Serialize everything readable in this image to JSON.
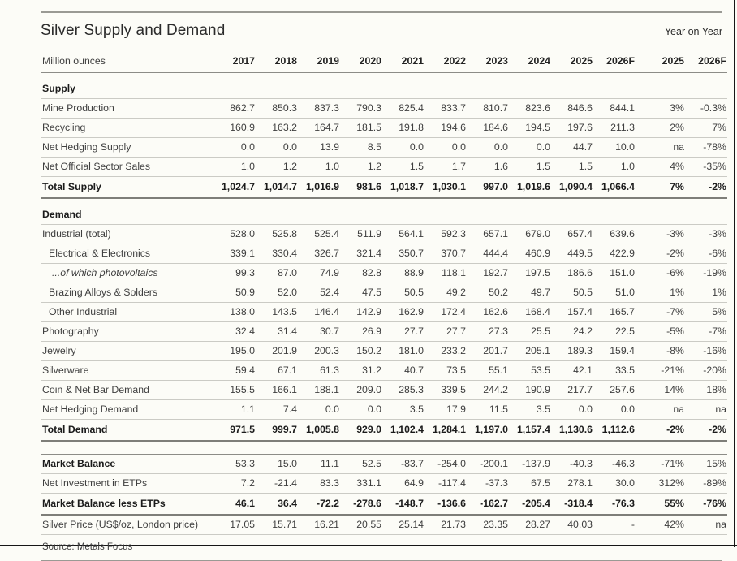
{
  "page": {
    "title": "Silver Supply and Demand",
    "yoy_label": "Year on Year",
    "source": "Source: Metals Focus"
  },
  "table": {
    "unit_label": "Million ounces",
    "year_columns": [
      "2017",
      "2018",
      "2019",
      "2020",
      "2021",
      "2022",
      "2023",
      "2024",
      "2025",
      "2026F"
    ],
    "yoy_columns": [
      "2025",
      "2026F"
    ],
    "rows": [
      {
        "style": "section",
        "label": "Supply"
      },
      {
        "style": "plain",
        "label": "Mine Production",
        "values": [
          "862.7",
          "850.3",
          "837.3",
          "790.3",
          "825.4",
          "833.7",
          "810.7",
          "823.6",
          "846.6",
          "844.1"
        ],
        "yoy": [
          "3%",
          "-0.3%"
        ]
      },
      {
        "style": "plain",
        "label": "Recycling",
        "values": [
          "160.9",
          "163.2",
          "164.7",
          "181.5",
          "191.8",
          "194.6",
          "184.6",
          "194.5",
          "197.6",
          "211.3"
        ],
        "yoy": [
          "2%",
          "7%"
        ]
      },
      {
        "style": "plain",
        "label": "Net Hedging Supply",
        "values": [
          "0.0",
          "0.0",
          "13.9",
          "8.5",
          "0.0",
          "0.0",
          "0.0",
          "0.0",
          "44.7",
          "10.0"
        ],
        "yoy": [
          "na",
          "-78%"
        ]
      },
      {
        "style": "plain",
        "label": "Net Official Sector Sales",
        "values": [
          "1.0",
          "1.2",
          "1.0",
          "1.2",
          "1.5",
          "1.7",
          "1.6",
          "1.5",
          "1.5",
          "1.0"
        ],
        "yoy": [
          "4%",
          "-35%"
        ]
      },
      {
        "style": "total",
        "label": "Total Supply",
        "values": [
          "1,024.7",
          "1,014.7",
          "1,016.9",
          "981.6",
          "1,018.7",
          "1,030.1",
          "997.0",
          "1,019.6",
          "1,090.4",
          "1,066.4"
        ],
        "yoy": [
          "7%",
          "-2%"
        ]
      },
      {
        "style": "section",
        "label": "Demand"
      },
      {
        "style": "plain",
        "label": "Industrial (total)",
        "values": [
          "528.0",
          "525.8",
          "525.4",
          "511.9",
          "564.1",
          "592.3",
          "657.1",
          "679.0",
          "657.4",
          "639.6"
        ],
        "yoy": [
          "-3%",
          "-3%"
        ]
      },
      {
        "style": "indent1",
        "label": "Electrical & Electronics",
        "values": [
          "339.1",
          "330.4",
          "326.7",
          "321.4",
          "350.7",
          "370.7",
          "444.4",
          "460.9",
          "449.5",
          "422.9"
        ],
        "yoy": [
          "-2%",
          "-6%"
        ]
      },
      {
        "style": "indent2italic",
        "label": "...of which photovoltaics",
        "values": [
          "99.3",
          "87.0",
          "74.9",
          "82.8",
          "88.9",
          "118.1",
          "192.7",
          "197.5",
          "186.6",
          "151.0"
        ],
        "yoy": [
          "-6%",
          "-19%"
        ]
      },
      {
        "style": "indent1",
        "label": "Brazing Alloys & Solders",
        "values": [
          "50.9",
          "52.0",
          "52.4",
          "47.5",
          "50.5",
          "49.2",
          "50.2",
          "49.7",
          "50.5",
          "51.0"
        ],
        "yoy": [
          "1%",
          "1%"
        ]
      },
      {
        "style": "indent1",
        "label": "Other Industrial",
        "values": [
          "138.0",
          "143.5",
          "146.4",
          "142.9",
          "162.9",
          "172.4",
          "162.6",
          "168.4",
          "157.4",
          "165.7"
        ],
        "yoy": [
          "-7%",
          "5%"
        ]
      },
      {
        "style": "plain",
        "label": "Photography",
        "values": [
          "32.4",
          "31.4",
          "30.7",
          "26.9",
          "27.7",
          "27.7",
          "27.3",
          "25.5",
          "24.2",
          "22.5"
        ],
        "yoy": [
          "-5%",
          "-7%"
        ]
      },
      {
        "style": "plain",
        "label": "Jewelry",
        "values": [
          "195.0",
          "201.9",
          "200.3",
          "150.2",
          "181.0",
          "233.2",
          "201.7",
          "205.1",
          "189.3",
          "159.4"
        ],
        "yoy": [
          "-8%",
          "-16%"
        ]
      },
      {
        "style": "plain",
        "label": "Silverware",
        "values": [
          "59.4",
          "67.1",
          "61.3",
          "31.2",
          "40.7",
          "73.5",
          "55.1",
          "53.5",
          "42.1",
          "33.5"
        ],
        "yoy": [
          "-21%",
          "-20%"
        ]
      },
      {
        "style": "plain",
        "label": "Coin & Net Bar Demand",
        "values": [
          "155.5",
          "166.1",
          "188.1",
          "209.0",
          "285.3",
          "339.5",
          "244.2",
          "190.9",
          "217.7",
          "257.6"
        ],
        "yoy": [
          "14%",
          "18%"
        ]
      },
      {
        "style": "plain",
        "label": "Net Hedging Demand",
        "values": [
          "1.1",
          "7.4",
          "0.0",
          "0.0",
          "3.5",
          "17.9",
          "11.5",
          "3.5",
          "0.0",
          "0.0"
        ],
        "yoy": [
          "na",
          "na"
        ]
      },
      {
        "style": "total",
        "label": "Total Demand",
        "values": [
          "971.5",
          "999.7",
          "1,005.8",
          "929.0",
          "1,102.4",
          "1,284.1",
          "1,197.0",
          "1,157.4",
          "1,130.6",
          "1,112.6"
        ],
        "yoy": [
          "-2%",
          "-2%"
        ]
      },
      {
        "style": "gap"
      },
      {
        "style": "boldlabel",
        "label": "Market Balance",
        "values": [
          "53.3",
          "15.0",
          "11.1",
          "52.5",
          "-83.7",
          "-254.0",
          "-200.1",
          "-137.9",
          "-40.3",
          "-46.3"
        ],
        "yoy": [
          "-71%",
          "15%"
        ]
      },
      {
        "style": "plain",
        "label": "Net Investment in ETPs",
        "values": [
          "7.2",
          "-21.4",
          "83.3",
          "331.1",
          "64.9",
          "-117.4",
          "-37.3",
          "67.5",
          "278.1",
          "30.0"
        ],
        "yoy": [
          "312%",
          "-89%"
        ]
      },
      {
        "style": "total",
        "label": "Market Balance less ETPs",
        "values": [
          "46.1",
          "36.4",
          "-72.2",
          "-278.6",
          "-148.7",
          "-136.6",
          "-162.7",
          "-205.4",
          "-318.4",
          "-76.3"
        ],
        "yoy": [
          "55%",
          "-76%"
        ]
      },
      {
        "style": "plain",
        "label": "Silver Price (US$/oz, London price)",
        "values": [
          "17.05",
          "15.71",
          "16.21",
          "20.55",
          "25.14",
          "21.73",
          "23.35",
          "28.27",
          "40.03",
          "-"
        ],
        "yoy": [
          "42%",
          "na"
        ]
      }
    ]
  }
}
